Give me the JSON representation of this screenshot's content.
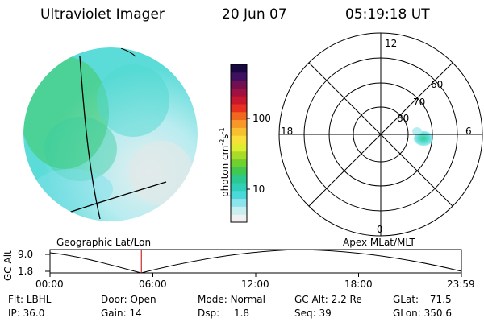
{
  "header": {
    "title": "Ultraviolet Imager",
    "date": "20 Jun 07",
    "time": "05:19:18 UT"
  },
  "colorbar": {
    "label": "photon cm",
    "label_sup1": "-2",
    "label_mid": "s",
    "label_sup2": "-1",
    "ticks": [
      "100",
      "10"
    ],
    "colors": [
      "#f0f0f0",
      "#c8eef0",
      "#8ee4ec",
      "#4ad8d8",
      "#30d0b8",
      "#2cc890",
      "#40c850",
      "#70d030",
      "#a8dc28",
      "#e0ec30",
      "#f8e038",
      "#f8c030",
      "#f89828",
      "#f06820",
      "#e83020",
      "#c81830",
      "#a01040",
      "#701050",
      "#401060",
      "#180840"
    ]
  },
  "polar": {
    "top": "12",
    "left": "18",
    "right": "6",
    "bottom": "0",
    "rings": [
      "80",
      "70",
      "60"
    ]
  },
  "labels": {
    "left_caption": "Geographic Lat/Lon",
    "right_caption": "Apex MLat/MLT"
  },
  "timeline": {
    "axis_label": "GC Alt",
    "y_top": "9.0",
    "y_bottom": "1.8",
    "ticks": [
      "00:00",
      "06:00",
      "12:00",
      "18:00",
      "23:59"
    ],
    "current_time_fraction": 0.222
  },
  "info": {
    "flt_label": "Flt:",
    "flt_value": "LBHL",
    "ip_label": "IP:",
    "ip_value": "36.0",
    "door_label": "Door:",
    "door_value": "Open",
    "gain_label": "Gain:",
    "gain_value": "14",
    "mode_label": "Mode:",
    "mode_value": "Normal",
    "dsp_label": "Dsp:",
    "dsp_value": "1.8",
    "gcalt_label": "GC Alt:",
    "gcalt_value": "2.2 Re",
    "seq_label": "Seq:",
    "seq_value": "39",
    "glat_label": "GLat:",
    "glat_value": "71.5",
    "glon_label": "GLon:",
    "glon_value": "350.6"
  }
}
